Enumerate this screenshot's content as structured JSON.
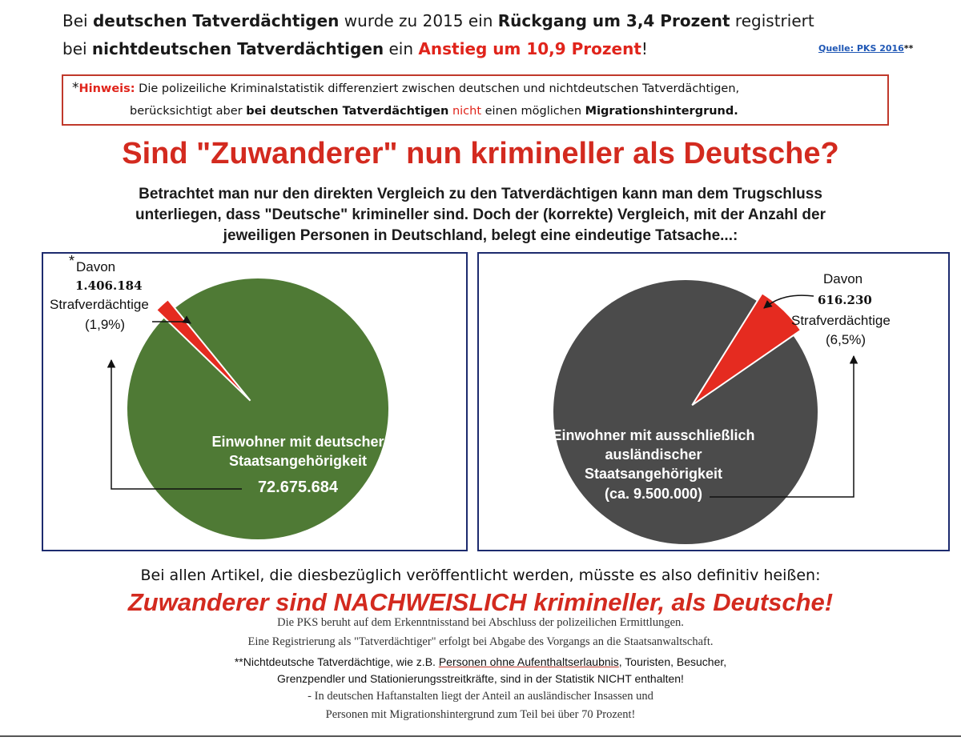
{
  "header": {
    "line1": {
      "p1": "Bei ",
      "p2": "deutschen Tatverdächtigen",
      "p3": " wurde zu 2015 ein ",
      "p4": "Rückgang um 3,4 Prozent",
      "p5": " registriert"
    },
    "line2": {
      "p1": "bei ",
      "p2": "nichtdeutschen Tatverdächtigen",
      "p3": " ein ",
      "p4": "Anstieg um 10,9 Prozent",
      "p5": "!"
    },
    "source_label": "Quelle: PKS 2016",
    "source_marker": "**"
  },
  "note": {
    "star": "*",
    "hint_label": "Hinweis:",
    "l1_text": " Die polizeiliche Kriminalstatistik differenziert zwischen deutschen und nichtdeutschen Tatverdächtigen,",
    "l2_p1": "berücksichtigt aber ",
    "l2_p2": "bei deutschen Tatverdächtigen",
    "l2_p3": "nicht",
    "l2_p4": " einen möglichen ",
    "l2_p5": "Migrationshintergrund."
  },
  "headline": "Sind \"Zuwanderer\" nun krimineller als Deutsche?",
  "intro": [
    "Betrachtet man nur den direkten Vergleich zu den Tatverdächtigen kann man dem Trugschluss",
    "unterliegen, dass \"Deutsche\" krimineller sind. Doch der (korrekte) Vergleich, mit der Anzahl der",
    "jeweiligen Personen in Deutschland, belegt eine eindeutige Tatsache...:"
  ],
  "chart_data": [
    {
      "type": "pie",
      "title": "",
      "slices": [
        {
          "label": "Einwohner mit deutscher Staatsangehörigkeit",
          "value": 72675684,
          "color": "#4f7a35"
        },
        {
          "label": "Strafverdächtige",
          "value": 1406184,
          "percent": 1.9,
          "color": "#e52b20"
        }
      ],
      "annotations": {
        "star": "*",
        "davon": "Davon",
        "count": "1.406.184",
        "suspects": "Strafverdächtige",
        "percent": "(1,9%)",
        "pie_line1": "Einwohner mit deutscher",
        "pie_line2": "Staatsangehörigkeit",
        "pie_total": "72.675.684"
      }
    },
    {
      "type": "pie",
      "title": "",
      "slices": [
        {
          "label": "Einwohner mit ausschließlich ausländischer Staatsangehörigkeit",
          "value": 9500000,
          "color": "#4b4b4b"
        },
        {
          "label": "Strafverdächtige",
          "value": 616230,
          "percent": 6.5,
          "color": "#e52b20"
        }
      ],
      "annotations": {
        "davon": "Davon",
        "count": "616.230",
        "suspects": "Strafverdächtige",
        "percent": "(6,5%)",
        "pie_line1": "Einwohner mit ausschließlich",
        "pie_line2": "ausländischer",
        "pie_line3": "Staatsangehörigkeit",
        "pie_total": "(ca. 9.500.000)"
      }
    }
  ],
  "conclusion": "Bei allen Artikel, die diesbezüglich veröffentlicht werden, müsste es also definitiv heißen:",
  "big_statement": "Zuwanderer sind NACHWEISLICH krimineller, als Deutsche!",
  "footnotes": {
    "f1": "Die PKS beruht auf dem Erkenntnisstand bei Abschluss der polizeilichen Ermittlungen.",
    "f2": "Eine Registrierung als \"Tatverdächtiger\" erfolgt bei Abgabe des Vorgangs an die Staatsanwaltschaft.",
    "f3_p1": "**Nichtdeutsche Tatverdächtige, wie z.B. ",
    "f3_p2": "Personen ohne Aufenthaltserlaubnis",
    "f3_p3": ", Touristen, Besucher,",
    "f4": "Grenzpendler und Stationierungsstreitkräfte, sind in der Statistik NICHT enthalten!",
    "f5": "- In deutschen Haftanstalten liegt der Anteil an ausländischer Insassen und",
    "f6": "Personen mit Migrationshintergrund zum Teil bei über 70 Prozent!"
  },
  "colors": {
    "red": "#e52b20",
    "green": "#4f7a35",
    "gray": "#4b4b4b",
    "panel_border": "#1d2b6e",
    "link": "#1f57b5"
  }
}
